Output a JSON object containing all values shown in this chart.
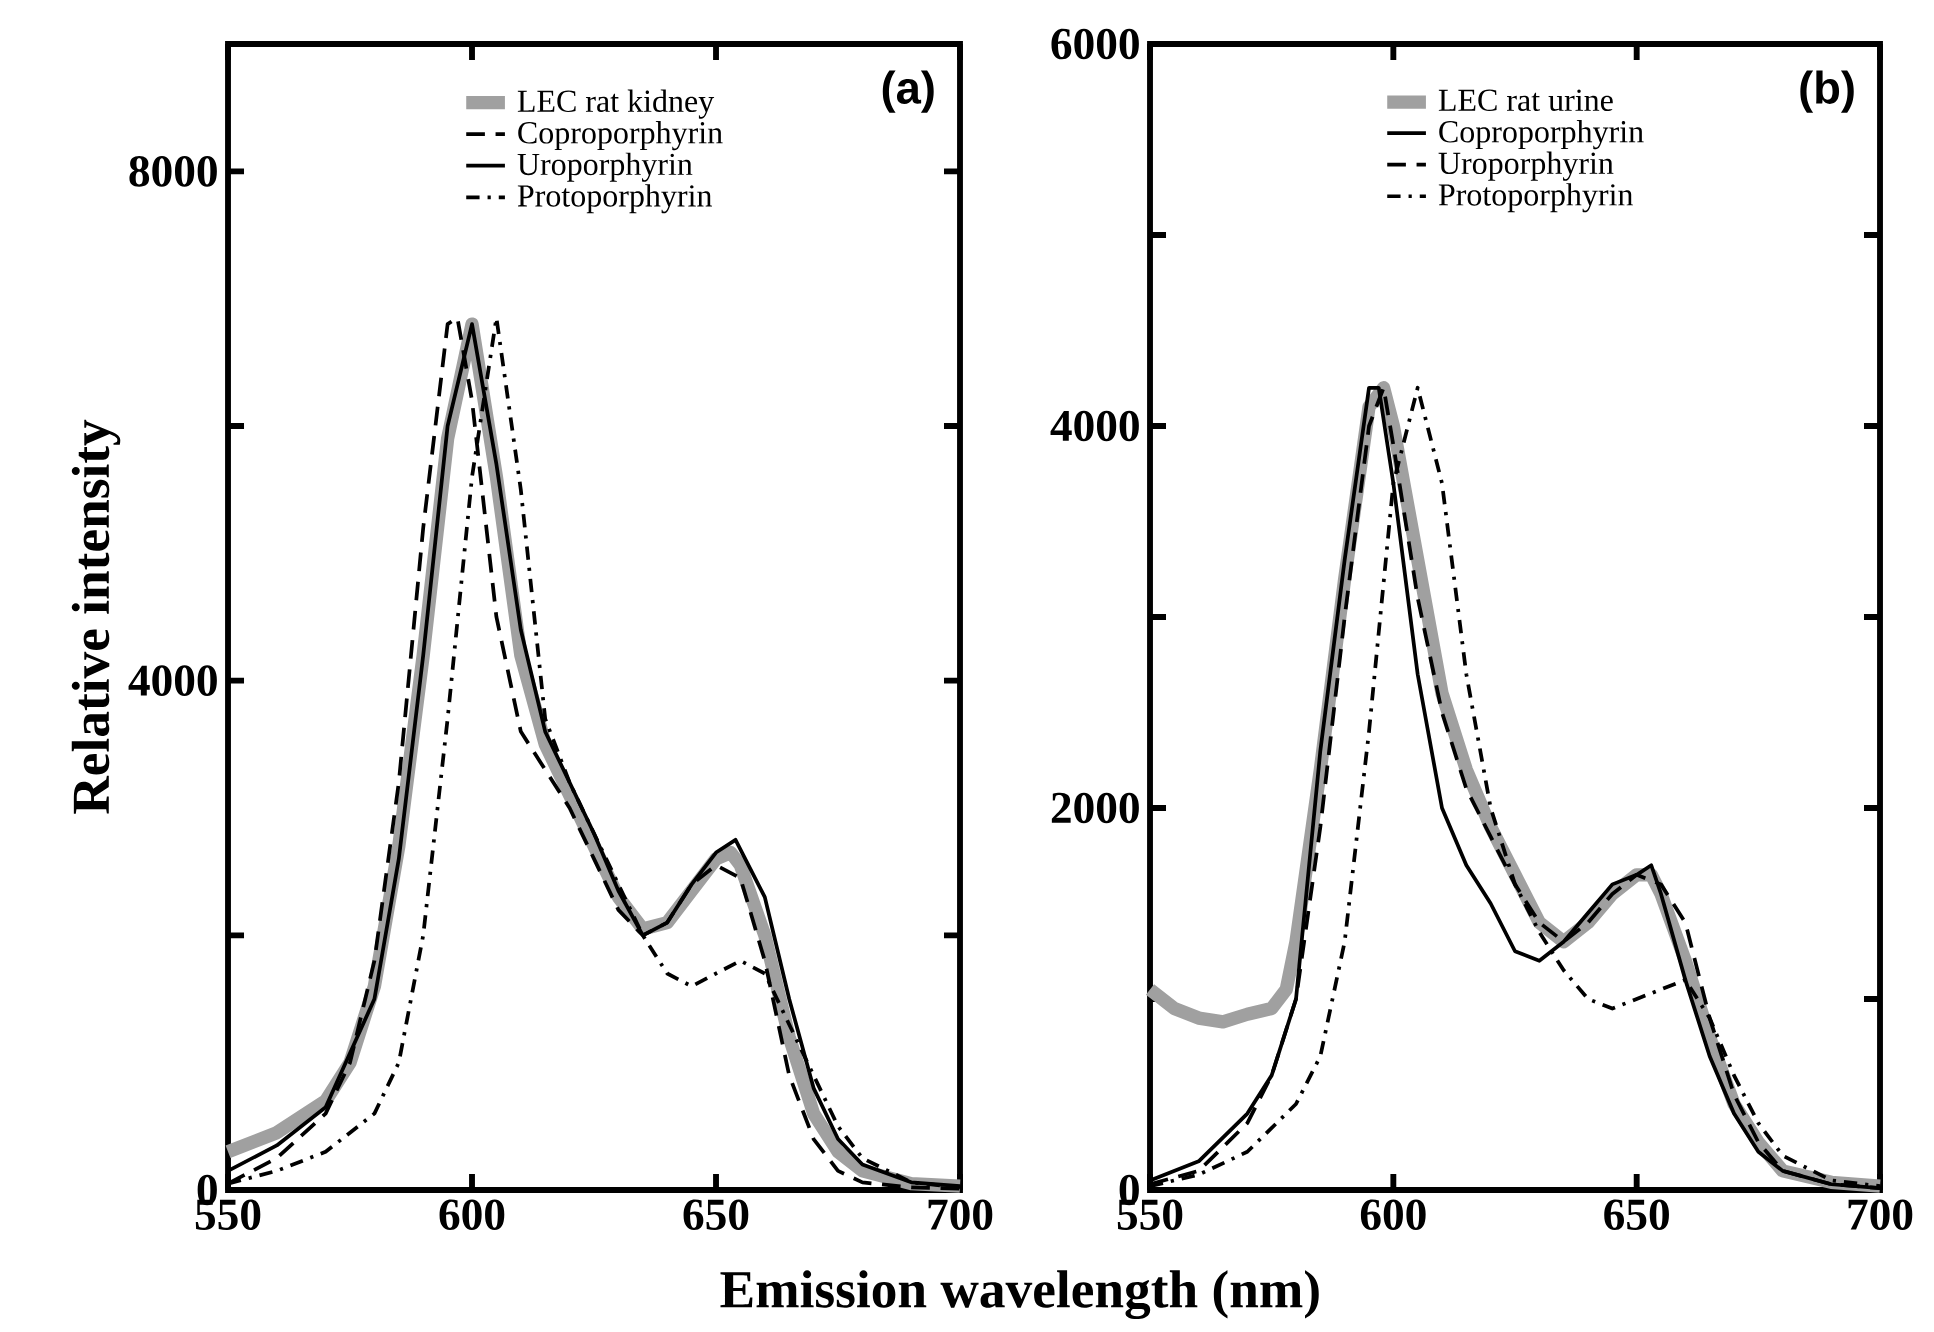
{
  "chart_data": [
    {
      "type": "line",
      "ylabel": "Relative intensity",
      "xlabel": "Emission wavelength (nm)",
      "annotations": [
        "(a)"
      ],
      "legend": "top",
      "xlim": [
        550,
        700
      ],
      "ylim": [
        0,
        9000
      ],
      "xticks": [
        550,
        600,
        650,
        700
      ],
      "yticks": [
        0,
        {
          "value": 2000,
          "label": null
        },
        4000,
        {
          "value": 6000,
          "label": null
        },
        8000
      ],
      "series": [
        {
          "name": "LEC rat kidney",
          "color": "#a0a0a0",
          "line_style": "solid",
          "x": [
            550,
            560,
            570,
            575,
            580,
            585,
            590,
            595,
            600,
            605,
            610,
            615,
            620,
            625,
            630,
            635,
            640,
            645,
            650,
            653,
            655,
            660,
            665,
            670,
            675,
            680,
            690,
            700
          ],
          "values": [
            300,
            450,
            700,
            1000,
            1600,
            2700,
            4200,
            5900,
            6800,
            5600,
            4200,
            3500,
            3100,
            2700,
            2300,
            2050,
            2100,
            2350,
            2600,
            2650,
            2550,
            2000,
            1200,
            600,
            300,
            150,
            50,
            30
          ]
        },
        {
          "name": "Coproporphyrin",
          "color": "#000000",
          "line_style": "dashed",
          "x": [
            550,
            560,
            570,
            575,
            580,
            585,
            590,
            595,
            597,
            600,
            605,
            610,
            615,
            620,
            625,
            630,
            635,
            640,
            645,
            650,
            655,
            660,
            665,
            670,
            675,
            680,
            690,
            700
          ],
          "values": [
            50,
            250,
            600,
            1000,
            1800,
            3200,
            5200,
            6800,
            6850,
            6200,
            4500,
            3600,
            3300,
            3000,
            2600,
            2200,
            2000,
            2100,
            2400,
            2550,
            2450,
            1800,
            900,
            400,
            150,
            60,
            20,
            10
          ]
        },
        {
          "name": "Uroporphyrin",
          "color": "#000000",
          "line_style": "solid",
          "x": [
            550,
            560,
            570,
            580,
            585,
            590,
            595,
            600,
            605,
            610,
            615,
            620,
            625,
            630,
            635,
            640,
            645,
            650,
            654,
            660,
            665,
            670,
            675,
            680,
            690,
            700
          ],
          "values": [
            150,
            350,
            650,
            1500,
            2600,
            4200,
            6000,
            6800,
            5700,
            4400,
            3600,
            3200,
            2800,
            2350,
            2000,
            2100,
            2400,
            2650,
            2750,
            2300,
            1500,
            800,
            400,
            200,
            60,
            30
          ]
        },
        {
          "name": "Protoporphyrin",
          "color": "#000000",
          "line_style": "dashdot",
          "x": [
            550,
            560,
            570,
            580,
            585,
            590,
            595,
            600,
            605,
            610,
            615,
            620,
            625,
            630,
            635,
            640,
            645,
            650,
            655,
            660,
            665,
            670,
            675,
            680,
            690,
            700
          ],
          "values": [
            50,
            150,
            300,
            600,
            1000,
            2000,
            3700,
            5600,
            6850,
            5500,
            3700,
            3200,
            2800,
            2400,
            2000,
            1700,
            1600,
            1700,
            1800,
            1700,
            1300,
            900,
            500,
            250,
            60,
            20
          ]
        }
      ]
    },
    {
      "type": "line",
      "annotations": [
        "(b)"
      ],
      "legend": "top",
      "xlim": [
        550,
        700
      ],
      "ylim": [
        0,
        6000
      ],
      "xticks": [
        550,
        600,
        650,
        700
      ],
      "yticks": [
        0,
        {
          "value": 1000,
          "label": null
        },
        2000,
        {
          "value": 3000,
          "label": null
        },
        4000,
        {
          "value": 5000,
          "label": null
        },
        6000
      ],
      "series": [
        {
          "name": "LEC rat urine",
          "color": "#a0a0a0",
          "line_style": "solid",
          "x": [
            550,
            555,
            560,
            565,
            570,
            575,
            578,
            580,
            585,
            590,
            595,
            598,
            600,
            605,
            610,
            615,
            620,
            625,
            630,
            635,
            640,
            645,
            650,
            653,
            655,
            660,
            665,
            670,
            675,
            680,
            690,
            700
          ],
          "values": [
            1050,
            950,
            900,
            880,
            920,
            950,
            1050,
            1300,
            2200,
            3200,
            4100,
            4200,
            4000,
            3300,
            2600,
            2200,
            1900,
            1650,
            1400,
            1300,
            1400,
            1550,
            1650,
            1650,
            1550,
            1200,
            800,
            450,
            250,
            100,
            40,
            20
          ]
        },
        {
          "name": "Coproporphyrin",
          "color": "#000000",
          "line_style": "solid",
          "x": [
            550,
            560,
            570,
            575,
            580,
            585,
            590,
            595,
            597,
            600,
            605,
            610,
            615,
            620,
            625,
            630,
            635,
            640,
            645,
            650,
            653,
            655,
            660,
            665,
            670,
            675,
            680,
            690,
            700
          ],
          "values": [
            50,
            150,
            400,
            600,
            1000,
            2300,
            3300,
            4200,
            4200,
            3700,
            2700,
            2000,
            1700,
            1500,
            1250,
            1200,
            1300,
            1450,
            1600,
            1650,
            1700,
            1550,
            1100,
            700,
            400,
            200,
            100,
            30,
            10
          ]
        },
        {
          "name": "Uroporphyrin",
          "color": "#000000",
          "line_style": "dashed",
          "x": [
            550,
            560,
            570,
            575,
            580,
            585,
            590,
            595,
            598,
            600,
            605,
            610,
            615,
            620,
            625,
            630,
            635,
            640,
            645,
            650,
            655,
            660,
            665,
            670,
            675,
            680,
            690,
            700
          ],
          "values": [
            30,
            100,
            350,
            600,
            1000,
            1900,
            3000,
            4000,
            4200,
            3900,
            3100,
            2500,
            2100,
            1850,
            1600,
            1400,
            1300,
            1400,
            1550,
            1650,
            1600,
            1400,
            900,
            500,
            250,
            100,
            30,
            10
          ]
        },
        {
          "name": "Protoporphyrin",
          "color": "#000000",
          "line_style": "dashdot",
          "x": [
            550,
            560,
            570,
            580,
            585,
            590,
            595,
            600,
            605,
            610,
            615,
            620,
            625,
            630,
            635,
            640,
            645,
            650,
            655,
            660,
            665,
            670,
            675,
            680,
            690,
            700
          ],
          "values": [
            20,
            80,
            200,
            450,
            700,
            1300,
            2400,
            3700,
            4200,
            3700,
            2700,
            2000,
            1600,
            1350,
            1150,
            1000,
            950,
            1000,
            1050,
            1100,
            900,
            600,
            350,
            180,
            50,
            20
          ]
        }
      ]
    }
  ]
}
